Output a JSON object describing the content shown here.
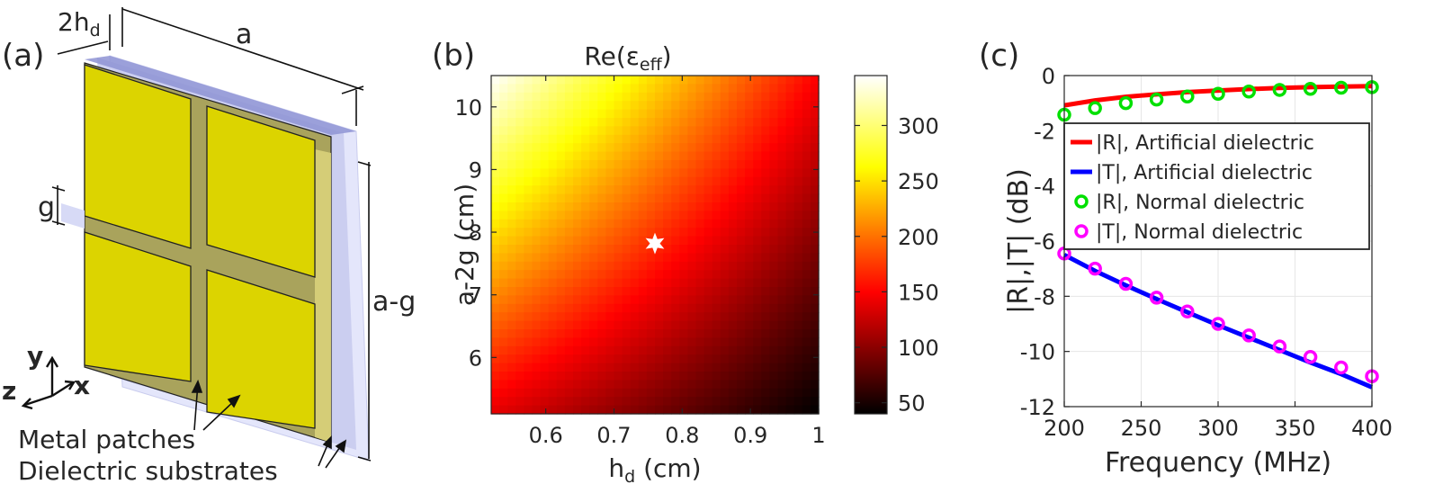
{
  "panels": {
    "a": {
      "label": "(a)",
      "dims": {
        "thickness_main": "2h",
        "thickness_sub": "d",
        "width": "a",
        "gap": "g",
        "height": "a-g"
      },
      "axes": {
        "y": "y",
        "z": "z",
        "x": "x"
      },
      "annotations": [
        "Metal patches",
        "Dielectric substrates"
      ],
      "colors": {
        "patch": "#d8d000",
        "substrate": "#8a8fd0",
        "gap": "#a8a060"
      }
    },
    "b": {
      "label": "(b)"
    },
    "c": {
      "label": "(c)"
    }
  },
  "chart_data": [
    {
      "panel": "b",
      "type": "heatmap",
      "title_main": "Re(ε",
      "title_sub": "eff",
      "title_tail": ")",
      "xlabel_main": "h",
      "xlabel_sub": "d",
      "xlabel_tail": " (cm)",
      "ylabel": "a-2g (cm)",
      "xlim": [
        0.52,
        1.0
      ],
      "ylim": [
        5.1,
        10.5
      ],
      "xticks": [
        0.6,
        0.7,
        0.8,
        0.9,
        1.0
      ],
      "xtick_labels": [
        "0.6",
        "0.7",
        "0.8",
        "0.9",
        "1"
      ],
      "yticks": [
        6,
        7,
        8,
        9,
        10
      ],
      "ytick_labels": [
        "6",
        "7",
        "8",
        "9",
        "10"
      ],
      "clim": [
        40,
        345
      ],
      "colorbar_ticks": [
        50,
        100,
        150,
        200,
        250,
        300
      ],
      "colorbar_labels": [
        "50",
        "100",
        "150",
        "200",
        "250",
        "300"
      ],
      "colormap": "hot",
      "value_corners": {
        "top_left": 345,
        "top_right": 150,
        "bottom_left": 140,
        "bottom_right": 40
      },
      "marker": {
        "symbol": "star",
        "x": 0.76,
        "y": 7.82,
        "color": "#ffffff"
      }
    },
    {
      "panel": "c",
      "type": "line",
      "xlabel": "Frequency (MHz)",
      "ylabel": "|R|,|T| (dB)",
      "xlim": [
        200,
        400
      ],
      "ylim": [
        -12,
        0
      ],
      "xticks": [
        200,
        250,
        300,
        350,
        400
      ],
      "xtick_labels": [
        "200",
        "250",
        "300",
        "350",
        "400"
      ],
      "yticks": [
        0,
        -2,
        -4,
        -6,
        -8,
        -10,
        -12
      ],
      "ytick_labels": [
        "0",
        "-2",
        "-4",
        "-6",
        "-8",
        "-10",
        "-12"
      ],
      "grid": true,
      "legend_placement": "upper-right",
      "series": [
        {
          "name": "|R|, Artificial dielectric",
          "style": "line",
          "color": "#ff0000",
          "x": [
            200,
            220,
            240,
            260,
            280,
            300,
            320,
            340,
            360,
            380,
            400
          ],
          "y": [
            -1.08,
            -0.9,
            -0.77,
            -0.68,
            -0.6,
            -0.54,
            -0.49,
            -0.45,
            -0.42,
            -0.4,
            -0.38
          ]
        },
        {
          "name": "|T|, Artificial dielectric",
          "style": "line",
          "color": "#0000ff",
          "x": [
            200,
            220,
            240,
            260,
            280,
            300,
            320,
            340,
            360,
            380,
            400
          ],
          "y": [
            -6.5,
            -7.08,
            -7.6,
            -8.1,
            -8.58,
            -9.05,
            -9.5,
            -9.95,
            -10.4,
            -10.82,
            -11.3
          ]
        },
        {
          "name": "|R|, Normal dielectric",
          "style": "marker",
          "color": "#00e000",
          "x": [
            200,
            220,
            240,
            260,
            280,
            300,
            320,
            340,
            360,
            380,
            400
          ],
          "y": [
            -1.42,
            -1.18,
            -1.0,
            -0.87,
            -0.76,
            -0.66,
            -0.58,
            -0.52,
            -0.48,
            -0.44,
            -0.42
          ]
        },
        {
          "name": "|T|, Normal dielectric",
          "style": "marker",
          "color": "#ff00ff",
          "x": [
            200,
            220,
            240,
            260,
            280,
            300,
            320,
            340,
            360,
            380,
            400
          ],
          "y": [
            -6.45,
            -7.0,
            -7.55,
            -8.05,
            -8.55,
            -9.0,
            -9.42,
            -9.82,
            -10.2,
            -10.58,
            -10.9
          ]
        }
      ]
    }
  ]
}
